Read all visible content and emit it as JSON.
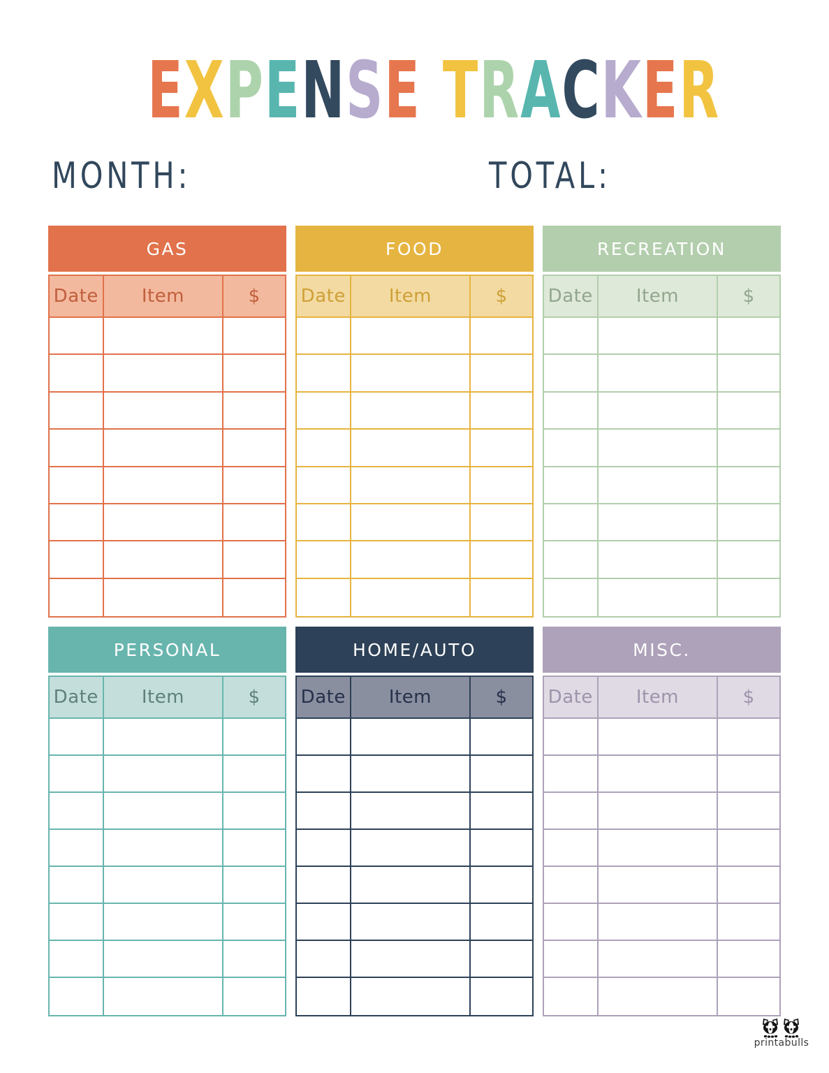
{
  "title": {
    "text": "EXPENSE TRACKER",
    "letters": [
      {
        "ch": "E",
        "color": "#E6764E"
      },
      {
        "ch": "X",
        "color": "#F1C340"
      },
      {
        "ch": "P",
        "color": "#ADD3AC"
      },
      {
        "ch": "E",
        "color": "#58B6AF"
      },
      {
        "ch": "N",
        "color": "#32495E"
      },
      {
        "ch": "S",
        "color": "#B7ABCE"
      },
      {
        "ch": "E",
        "color": "#E6764E"
      },
      {
        "ch": " ",
        "color": ""
      },
      {
        "ch": "T",
        "color": "#F1C340"
      },
      {
        "ch": "R",
        "color": "#ADD3AC"
      },
      {
        "ch": "A",
        "color": "#58B6AF"
      },
      {
        "ch": "C",
        "color": "#32495E"
      },
      {
        "ch": "K",
        "color": "#B7ABCE"
      },
      {
        "ch": "E",
        "color": "#E6764E"
      },
      {
        "ch": "R",
        "color": "#F1C340"
      }
    ]
  },
  "labels": {
    "month": "MONTH:",
    "total": "TOTAL:",
    "label_color": "#31475C"
  },
  "columns": [
    "Date",
    "Item",
    "$"
  ],
  "rows_per_table": 8,
  "tables": [
    {
      "id": "gas",
      "name": "GAS",
      "header_bg": "#E1724B",
      "header_text": "#FFFFFF",
      "subheader_bg": "#F3B99E",
      "subheader_text": "#C05F3D",
      "border": "#E1724B"
    },
    {
      "id": "food",
      "name": "FOOD",
      "header_bg": "#E6B440",
      "header_text": "#FFFFFF",
      "subheader_bg": "#F3DAA2",
      "subheader_text": "#CEA037",
      "border": "#E6B440"
    },
    {
      "id": "recreation",
      "name": "RECREATION",
      "header_bg": "#B3CEAD",
      "header_text": "#FFFFFF",
      "subheader_bg": "#DEE9D9",
      "subheader_text": "#92A68E",
      "border": "#B3CEAD"
    },
    {
      "id": "personal",
      "name": "PERSONAL",
      "header_bg": "#68B5AE",
      "header_text": "#FFFFFF",
      "subheader_bg": "#C4DFDB",
      "subheader_text": "#5F807C",
      "border": "#68B5AE"
    },
    {
      "id": "home-auto",
      "name": "HOME/AUTO",
      "header_bg": "#2D4158",
      "header_text": "#FFFFFF",
      "subheader_bg": "#8A8FA0",
      "subheader_text": "#25304A",
      "border": "#2D4158"
    },
    {
      "id": "misc",
      "name": "MISC.",
      "header_bg": "#ADA2B9",
      "header_text": "#FFFFFF",
      "subheader_bg": "#DFDAE4",
      "subheader_text": "#9F93AC",
      "border": "#ADA2B9"
    }
  ],
  "footer": {
    "logo_text": "printabulls"
  }
}
